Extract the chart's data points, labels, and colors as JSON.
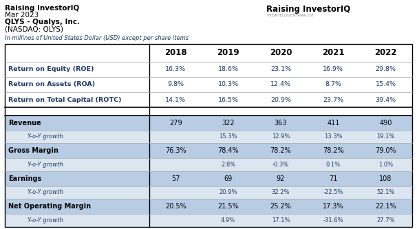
{
  "title_lines": [
    "Raising InvestorIQ",
    "Mar 2023",
    "QLYS - Qualys, Inc.",
    "(NASDAQ: QLYS)"
  ],
  "subtitle": "In millinos of United States Dollar (USD) except per share items",
  "years": [
    "2018",
    "2019",
    "2020",
    "2021",
    "2022"
  ],
  "section1_rows": [
    {
      "label": "Return on Equity (ROE)",
      "values": [
        "16.3%",
        "18.6%",
        "23.1%",
        "16.9%",
        "29.8%"
      ]
    },
    {
      "label": "Return on Assets (ROA)",
      "values": [
        "9.8%",
        "10.3%",
        "12.4%",
        "8.7%",
        "15.4%"
      ]
    },
    {
      "label": "Return on Total Capital (ROTC)",
      "values": [
        "14.1%",
        "16.5%",
        "20.9%",
        "23.7%",
        "39.4%"
      ]
    }
  ],
  "section2_rows": [
    {
      "label": "Revenue",
      "values": [
        "279",
        "322",
        "363",
        "411",
        "490"
      ],
      "italic": false,
      "bg": "#b8cce4"
    },
    {
      "label": "Y-o-Y growth",
      "values": [
        "",
        "15.3%",
        "12.9%",
        "13.3%",
        "19.1%"
      ],
      "italic": true,
      "bg": "#dce6f1"
    },
    {
      "label": "Gross Margin",
      "values": [
        "76.3%",
        "78.4%",
        "78.2%",
        "78.2%",
        "79.0%"
      ],
      "italic": false,
      "bg": "#b8cce4"
    },
    {
      "label": "Y-o-Y growth",
      "values": [
        "",
        "2.8%",
        "-0.3%",
        "0.1%",
        "1.0%"
      ],
      "italic": true,
      "bg": "#dce6f1"
    },
    {
      "label": "Earnings",
      "values": [
        "57",
        "69",
        "92",
        "71",
        "108"
      ],
      "italic": false,
      "bg": "#b8cce4"
    },
    {
      "label": "Y-o-Y growth",
      "values": [
        "",
        "20.9%",
        "32.2%",
        "-22.5%",
        "52.1%"
      ],
      "italic": true,
      "bg": "#dce6f1"
    },
    {
      "label": "Net Operating Margin",
      "values": [
        "20.5%",
        "21.5%",
        "25.2%",
        "17.3%",
        "22.1%"
      ],
      "italic": false,
      "bg": "#b8cce4"
    },
    {
      "label": "Y-o-Y growth",
      "values": [
        "",
        "4.9%",
        "17.1%",
        "-31.6%",
        "27.7%"
      ],
      "italic": true,
      "bg": "#dce6f1"
    }
  ],
  "section1_label_color": "#1f3864",
  "section1_value_color": "#1f3864",
  "logo_main": "Raising InvestorIQ",
  "logo_sub": "THEINTELLIGENTANALYST"
}
